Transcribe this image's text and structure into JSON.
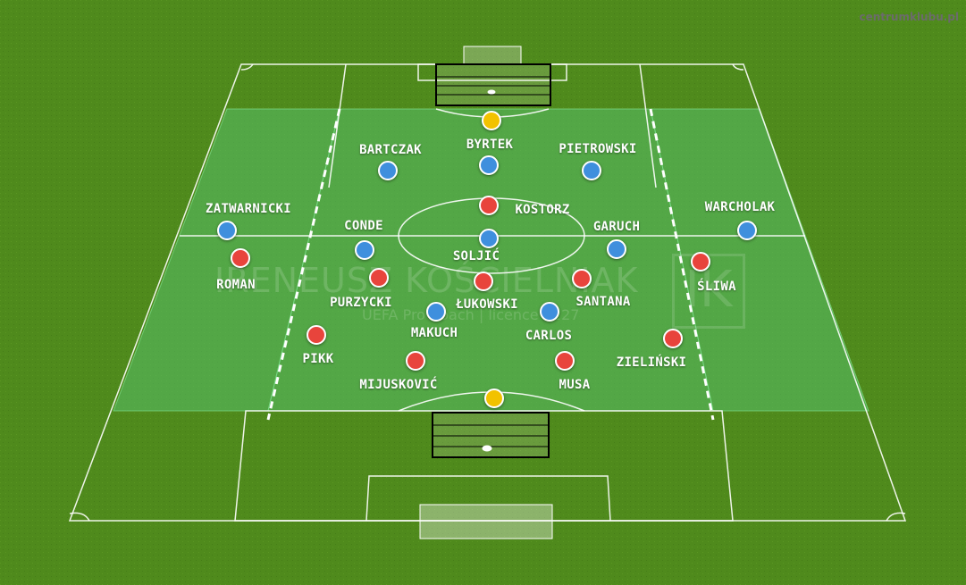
{
  "site_credit": "centrumklubu.pl",
  "watermark": {
    "name": "IRENEUSZ KOŚCIELNIAK",
    "subtitle": "UEFA Pro Coach | licence 1227",
    "logo": "IK"
  },
  "colors": {
    "grass": "#4f8a1c",
    "zone_fill": "#57c06a",
    "lines": "#ffffff",
    "team_blue": "#3f8fdd",
    "team_red": "#e8443c",
    "goalkeeper": "#f2c200"
  },
  "players": [
    {
      "name": "",
      "team": "goalkeeper"
    },
    {
      "name": "BYRTEK",
      "team": "blue"
    },
    {
      "name": "BARTCZAK",
      "team": "blue"
    },
    {
      "name": "PIETROWSKI",
      "team": "blue"
    },
    {
      "name": "KOSTORZ",
      "team": "red"
    },
    {
      "name": "ZATWARNICKI",
      "team": "blue"
    },
    {
      "name": "CONDE",
      "team": "blue"
    },
    {
      "name": "SOLJIĆ",
      "team": "blue"
    },
    {
      "name": "GARUCH",
      "team": "blue"
    },
    {
      "name": "WARCHOLAK",
      "team": "blue"
    },
    {
      "name": "ROMAN",
      "team": "red"
    },
    {
      "name": "PURZYCKI",
      "team": "red"
    },
    {
      "name": "ŁUKOWSKI",
      "team": "red"
    },
    {
      "name": "SANTANA",
      "team": "red"
    },
    {
      "name": "ŚLIWA",
      "team": "red"
    },
    {
      "name": "MAKUCH",
      "team": "blue"
    },
    {
      "name": "CARLOS",
      "team": "blue"
    },
    {
      "name": "PIKK",
      "team": "red"
    },
    {
      "name": "MIJUSKOVIĆ",
      "team": "red"
    },
    {
      "name": "MUSA",
      "team": "red"
    },
    {
      "name": "ZIELIŃSKI",
      "team": "red"
    },
    {
      "name": "",
      "team": "goalkeeper"
    }
  ]
}
